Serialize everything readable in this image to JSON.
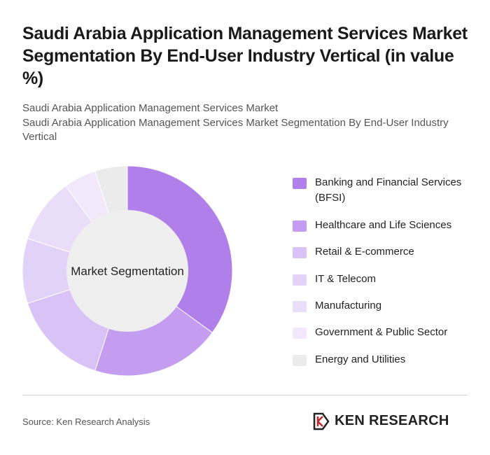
{
  "chart_data": {
    "type": "donut",
    "title": "Saudi Arabia Application Management Services Market Segmentation By End-User Industry Vertical (in value %)",
    "subtitle": [
      "Saudi Arabia Application Management Services Market",
      "Saudi Arabia Application Management Services Market Segmentation By End-User Industry Vertical"
    ],
    "center_label": "Market Segmentation",
    "categories": [
      "Banking and Financial Services (BFSI)",
      "Healthcare and Life Sciences",
      "Retail & E-commerce",
      "IT & Telecom",
      "Manufacturing",
      "Government & Public Sector",
      "Energy and Utilities"
    ],
    "values": [
      35,
      20,
      15,
      10,
      10,
      5,
      5
    ],
    "colors": [
      "#b07fe9",
      "#c49df0",
      "#d9c3f6",
      "#e2d2f8",
      "#e9ddf9",
      "#f1e9fb",
      "#ebebeb"
    ],
    "source": "Source: Ken Research Analysis",
    "brand": "KEN RESEARCH"
  }
}
